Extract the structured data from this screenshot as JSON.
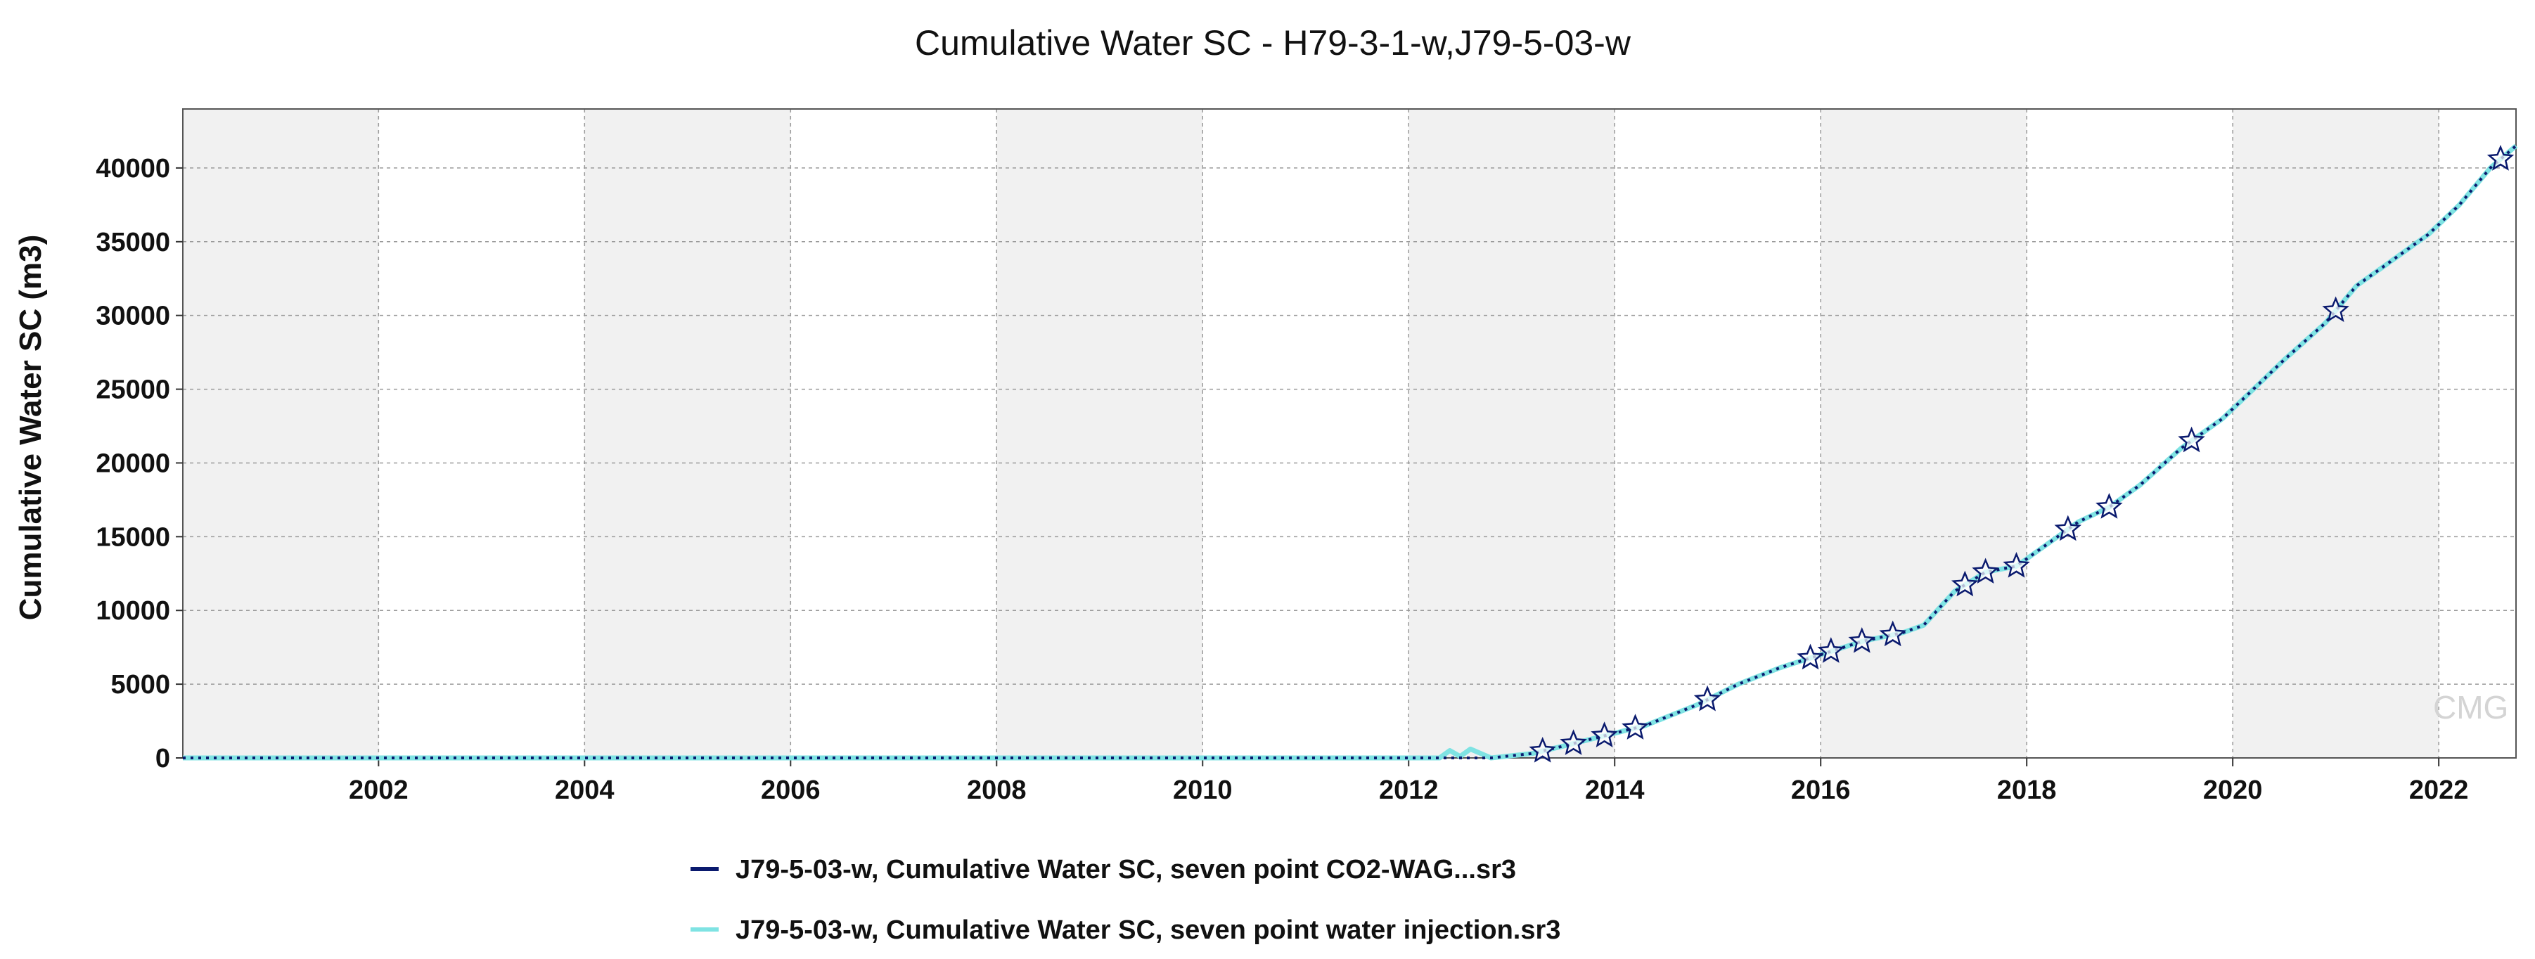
{
  "chart_data": {
    "type": "line",
    "title": "Cumulative Water SC - H79-3-1-w,J79-5-03-w",
    "xlabel": "",
    "ylabel": "Cumulative Water SC (m3)",
    "xlim": [
      2000.1,
      2022.75
    ],
    "ylim": [
      0,
      44000
    ],
    "x_ticks": [
      2002,
      2004,
      2006,
      2008,
      2010,
      2012,
      2014,
      2016,
      2018,
      2020,
      2022
    ],
    "x_tick_labels": [
      "2002",
      "2004",
      "2006",
      "2008",
      "2010",
      "2012",
      "2014",
      "2016",
      "2018",
      "2020",
      "2022"
    ],
    "y_ticks": [
      0,
      5000,
      10000,
      15000,
      20000,
      25000,
      30000,
      35000,
      40000
    ],
    "y_tick_labels": [
      "0",
      "5000",
      "10000",
      "15000",
      "20000",
      "25000",
      "30000",
      "35000",
      "40000"
    ],
    "grid": true,
    "legend_position": "bottom",
    "watermark": "CMG",
    "series": [
      {
        "name": "J79-5-03-w, Cumulative Water SC, seven point CO2-WAG...sr3",
        "color": "#0a1a6e",
        "style": "dotted-with-stars",
        "x": [
          2000.1,
          2012.8,
          2013.2,
          2013.5,
          2013.9,
          2014.3,
          2014.8,
          2015.2,
          2015.6,
          2016.0,
          2016.4,
          2016.8,
          2017.0,
          2017.3,
          2017.6,
          2017.9,
          2018.1,
          2018.5,
          2018.8,
          2019.1,
          2019.5,
          2019.9,
          2020.2,
          2020.5,
          2020.9,
          2021.2,
          2021.5,
          2021.9,
          2022.2,
          2022.5,
          2022.75
        ],
        "y": [
          0,
          0,
          300,
          800,
          1500,
          2200,
          3600,
          5000,
          6100,
          7000,
          7900,
          8500,
          9000,
          11300,
          12600,
          13000,
          14000,
          16000,
          17000,
          18500,
          21000,
          23000,
          25000,
          27000,
          29500,
          32000,
          33500,
          35500,
          37500,
          40000,
          41500
        ]
      },
      {
        "name": "J79-5-03-w, Cumulative Water SC, seven point water injection.sr3",
        "color": "#7fe3e3",
        "style": "solid",
        "x": [
          2000.1,
          2012.3,
          2012.4,
          2012.5,
          2012.6,
          2012.7,
          2012.8,
          2013.2,
          2013.5,
          2013.9,
          2014.3,
          2014.8,
          2015.2,
          2015.6,
          2016.0,
          2016.4,
          2016.8,
          2017.0,
          2017.3,
          2017.6,
          2017.9,
          2018.1,
          2018.5,
          2018.8,
          2019.1,
          2019.5,
          2019.9,
          2020.2,
          2020.5,
          2020.9,
          2021.2,
          2021.5,
          2021.9,
          2022.2,
          2022.5,
          2022.75
        ],
        "y": [
          0,
          0,
          500,
          100,
          600,
          300,
          0,
          300,
          800,
          1500,
          2200,
          3600,
          5000,
          6100,
          7000,
          7900,
          8500,
          9000,
          11300,
          12600,
          13000,
          14000,
          16000,
          17000,
          18500,
          21000,
          23000,
          25000,
          27000,
          29500,
          32000,
          33500,
          35500,
          37500,
          40000,
          41500
        ]
      }
    ],
    "star_markers": {
      "series": 0,
      "x": [
        2013.3,
        2013.6,
        2013.9,
        2014.2,
        2014.9,
        2015.9,
        2016.1,
        2016.4,
        2016.7,
        2017.4,
        2017.6,
        2017.9,
        2018.4,
        2018.8,
        2019.6,
        2021.0,
        2022.6
      ]
    }
  }
}
